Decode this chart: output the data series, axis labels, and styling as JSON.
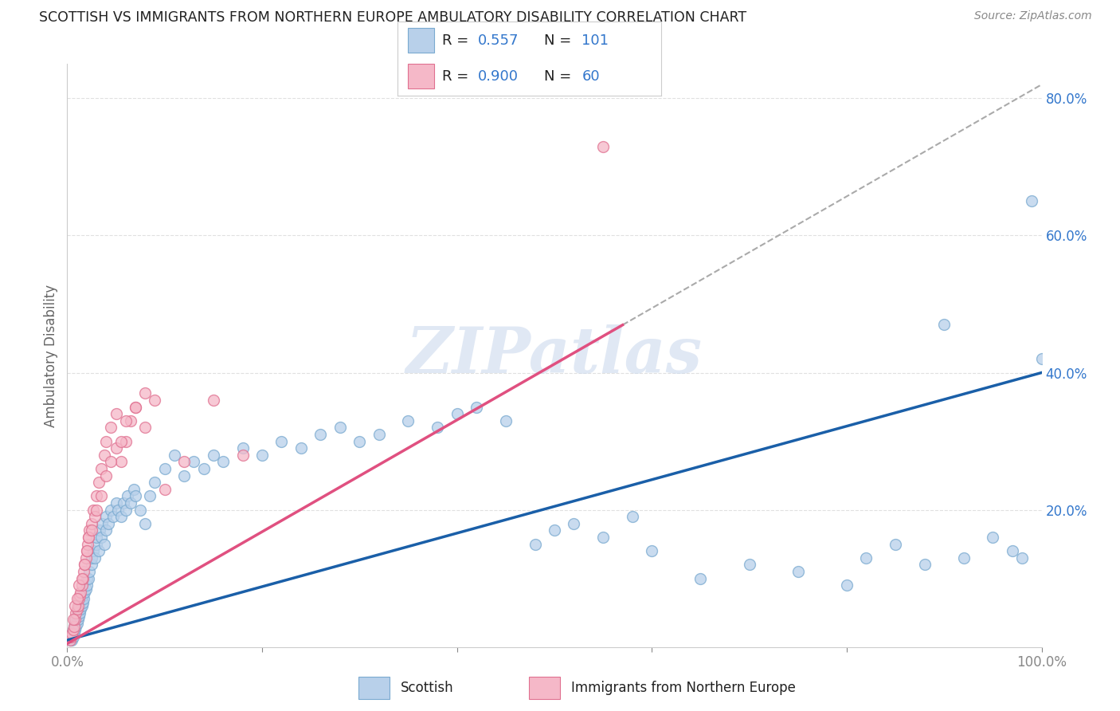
{
  "title": "SCOTTISH VS IMMIGRANTS FROM NORTHERN EUROPE AMBULATORY DISABILITY CORRELATION CHART",
  "source": "Source: ZipAtlas.com",
  "ylabel": "Ambulatory Disability",
  "watermark": "ZIPatlas",
  "background_color": "#ffffff",
  "grid_color": "#e0e0e0",
  "scottish_R": 0.557,
  "scottish_N": 101,
  "immigrant_R": 0.9,
  "immigrant_N": 60,
  "scottish_color_fill": "#b8d0ea",
  "scottish_color_edge": "#7aaad0",
  "scottish_line_color": "#1a5fa8",
  "immigrant_color_fill": "#f5b8c8",
  "immigrant_color_edge": "#e07090",
  "immigrant_line_color": "#e05080",
  "legend_R_color": "#3377cc",
  "title_color": "#222222",
  "source_color": "#888888",
  "xlim": [
    0,
    1.0
  ],
  "ylim": [
    0,
    0.85
  ],
  "xtick_labels": [
    "0.0%",
    "",
    "",
    "",
    "",
    "100.0%"
  ],
  "xtick_positions": [
    0.0,
    0.2,
    0.4,
    0.6,
    0.8,
    1.0
  ],
  "ytick_labels": [
    "20.0%",
    "40.0%",
    "60.0%",
    "80.0%"
  ],
  "ytick_positions": [
    0.2,
    0.4,
    0.6,
    0.8
  ],
  "scot_line_x0": 0.0,
  "scot_line_y0": 0.01,
  "scot_line_x1": 1.0,
  "scot_line_y1": 0.4,
  "imm_line_x0": 0.0,
  "imm_line_y0": 0.005,
  "imm_line_x1": 1.0,
  "imm_line_y1": 0.82,
  "scottish_pts_x": [
    0.003,
    0.004,
    0.005,
    0.005,
    0.006,
    0.006,
    0.007,
    0.007,
    0.008,
    0.008,
    0.009,
    0.009,
    0.01,
    0.01,
    0.011,
    0.011,
    0.012,
    0.012,
    0.013,
    0.013,
    0.014,
    0.015,
    0.015,
    0.016,
    0.016,
    0.017,
    0.018,
    0.019,
    0.02,
    0.02,
    0.022,
    0.023,
    0.025,
    0.025,
    0.027,
    0.028,
    0.03,
    0.03,
    0.032,
    0.033,
    0.035,
    0.036,
    0.038,
    0.04,
    0.04,
    0.042,
    0.045,
    0.047,
    0.05,
    0.052,
    0.055,
    0.058,
    0.06,
    0.062,
    0.065,
    0.068,
    0.07,
    0.075,
    0.08,
    0.085,
    0.09,
    0.1,
    0.11,
    0.12,
    0.13,
    0.14,
    0.15,
    0.16,
    0.18,
    0.2,
    0.22,
    0.24,
    0.26,
    0.28,
    0.3,
    0.32,
    0.35,
    0.38,
    0.4,
    0.42,
    0.45,
    0.48,
    0.5,
    0.52,
    0.55,
    0.58,
    0.6,
    0.65,
    0.7,
    0.75,
    0.8,
    0.82,
    0.85,
    0.88,
    0.9,
    0.92,
    0.95,
    0.97,
    0.98,
    0.99,
    1.0
  ],
  "scottish_pts_y": [
    0.01,
    0.015,
    0.01,
    0.02,
    0.015,
    0.025,
    0.02,
    0.03,
    0.025,
    0.035,
    0.03,
    0.04,
    0.035,
    0.045,
    0.04,
    0.05,
    0.045,
    0.055,
    0.05,
    0.06,
    0.055,
    0.06,
    0.07,
    0.065,
    0.075,
    0.07,
    0.08,
    0.085,
    0.09,
    0.1,
    0.1,
    0.11,
    0.12,
    0.13,
    0.14,
    0.13,
    0.15,
    0.16,
    0.14,
    0.17,
    0.16,
    0.18,
    0.15,
    0.17,
    0.19,
    0.18,
    0.2,
    0.19,
    0.21,
    0.2,
    0.19,
    0.21,
    0.2,
    0.22,
    0.21,
    0.23,
    0.22,
    0.2,
    0.18,
    0.22,
    0.24,
    0.26,
    0.28,
    0.25,
    0.27,
    0.26,
    0.28,
    0.27,
    0.29,
    0.28,
    0.3,
    0.29,
    0.31,
    0.32,
    0.3,
    0.31,
    0.33,
    0.32,
    0.34,
    0.35,
    0.33,
    0.15,
    0.17,
    0.18,
    0.16,
    0.19,
    0.14,
    0.1,
    0.12,
    0.11,
    0.09,
    0.13,
    0.15,
    0.12,
    0.47,
    0.13,
    0.16,
    0.14,
    0.13,
    0.65,
    0.42
  ],
  "immigrant_pts_x": [
    0.003,
    0.004,
    0.005,
    0.006,
    0.007,
    0.008,
    0.009,
    0.01,
    0.011,
    0.012,
    0.013,
    0.014,
    0.015,
    0.016,
    0.017,
    0.018,
    0.019,
    0.02,
    0.021,
    0.022,
    0.023,
    0.025,
    0.027,
    0.03,
    0.032,
    0.035,
    0.038,
    0.04,
    0.045,
    0.05,
    0.055,
    0.06,
    0.065,
    0.07,
    0.08,
    0.09,
    0.1,
    0.12,
    0.15,
    0.18,
    0.006,
    0.008,
    0.01,
    0.012,
    0.015,
    0.018,
    0.02,
    0.022,
    0.025,
    0.028,
    0.03,
    0.035,
    0.04,
    0.045,
    0.05,
    0.055,
    0.06,
    0.07,
    0.08,
    0.55
  ],
  "immigrant_pts_y": [
    0.01,
    0.015,
    0.02,
    0.025,
    0.03,
    0.04,
    0.05,
    0.055,
    0.06,
    0.07,
    0.075,
    0.08,
    0.09,
    0.1,
    0.11,
    0.12,
    0.13,
    0.14,
    0.15,
    0.16,
    0.17,
    0.18,
    0.2,
    0.22,
    0.24,
    0.26,
    0.28,
    0.3,
    0.32,
    0.34,
    0.27,
    0.3,
    0.33,
    0.35,
    0.32,
    0.36,
    0.23,
    0.27,
    0.36,
    0.28,
    0.04,
    0.06,
    0.07,
    0.09,
    0.1,
    0.12,
    0.14,
    0.16,
    0.17,
    0.19,
    0.2,
    0.22,
    0.25,
    0.27,
    0.29,
    0.3,
    0.33,
    0.35,
    0.37,
    0.73
  ]
}
